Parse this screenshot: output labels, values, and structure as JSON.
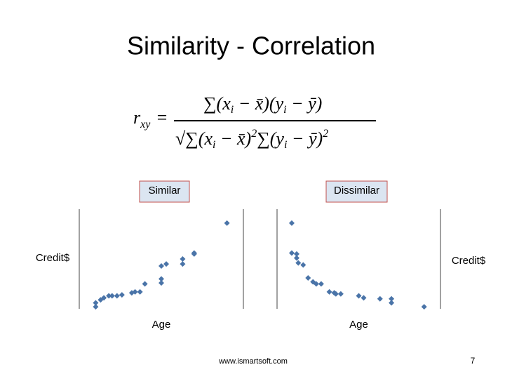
{
  "title": "Similarity - Correlation",
  "formula": {
    "lhs": "r",
    "lhs_sub": "xy",
    "eq": "=",
    "num": [
      "∑(x",
      "i",
      " − x̄)(y",
      "i",
      " − ȳ)"
    ],
    "den": [
      "√∑(x",
      "i",
      " − x̄)",
      "2",
      "∑(y",
      "i",
      " − ȳ)",
      "2"
    ]
  },
  "chart_data": [
    {
      "type": "scatter",
      "title": "Similar",
      "xlabel": "Age",
      "ylabel": "Credit$",
      "color": "#4a74a8",
      "xlim": [
        0,
        100
      ],
      "ylim": [
        0,
        100
      ],
      "x": [
        10,
        10,
        13,
        15,
        18,
        20,
        23,
        26,
        32,
        34,
        37,
        40,
        50,
        50,
        50,
        53,
        63,
        63,
        70,
        70,
        90
      ],
      "values": [
        2,
        6,
        9,
        11,
        13,
        13,
        13,
        14,
        16,
        17,
        17,
        25,
        26,
        30,
        43,
        45,
        45,
        50,
        56,
        55,
        86
      ]
    },
    {
      "type": "scatter",
      "title": "Dissimilar",
      "xlabel": "Age",
      "ylabel": "Credit$",
      "color": "#4a74a8",
      "xlim": [
        0,
        100
      ],
      "ylim": [
        0,
        100
      ],
      "x": [
        9,
        9,
        12,
        12,
        13,
        16,
        19,
        22,
        24,
        27,
        32,
        35,
        36,
        39,
        50,
        53,
        63,
        70,
        70,
        90
      ],
      "values": [
        86,
        56,
        55,
        51,
        46,
        44,
        31,
        27,
        25,
        25,
        17,
        16,
        15,
        15,
        13,
        11,
        10,
        10,
        6,
        2
      ]
    }
  ],
  "footer": {
    "url": "www.ismartsoft.com",
    "page": 7
  }
}
